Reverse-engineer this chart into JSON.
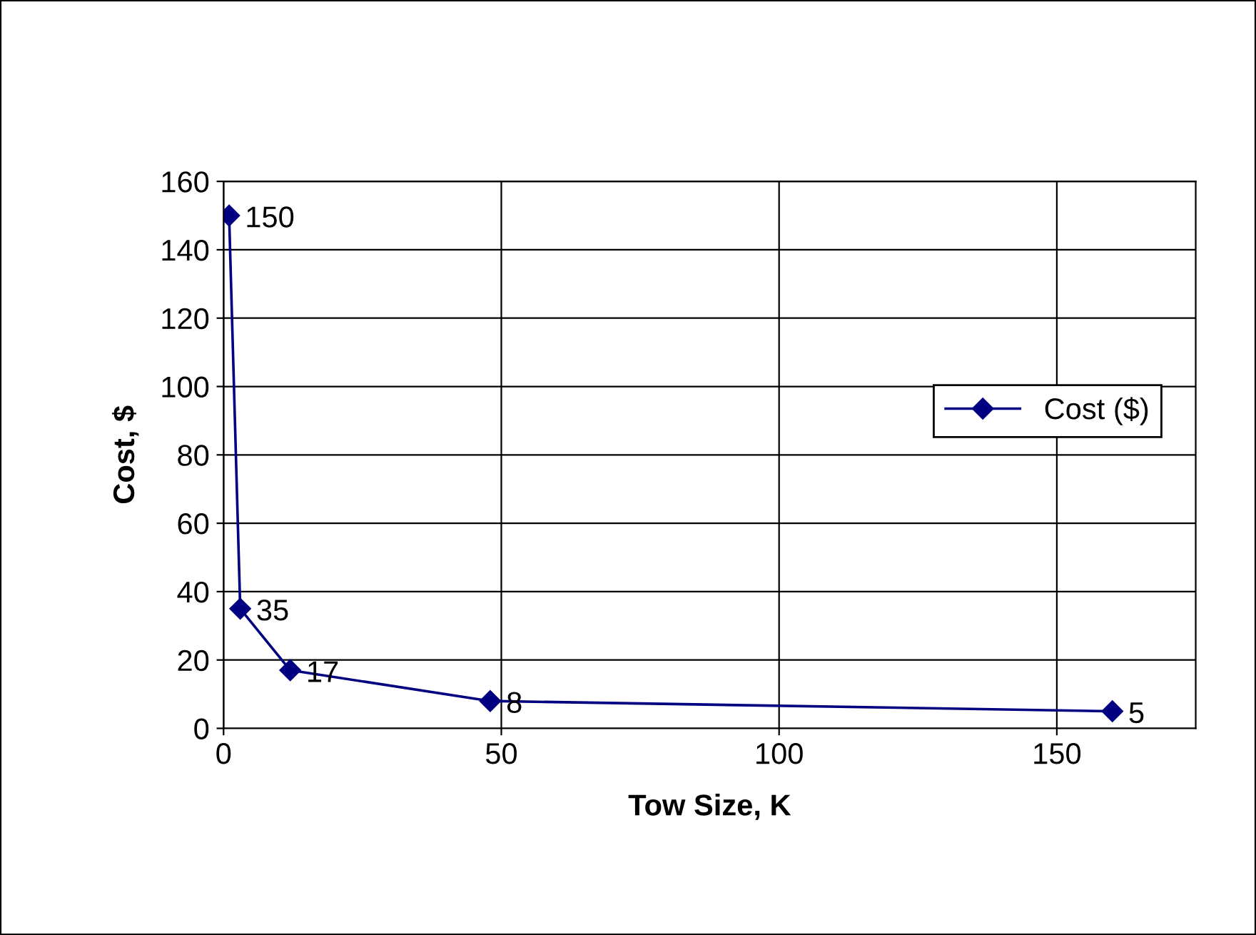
{
  "chart_data": {
    "type": "line",
    "xlabel": "Tow Size, K",
    "ylabel": "Cost, $",
    "x": [
      1,
      3,
      12,
      48,
      160
    ],
    "series": [
      {
        "name": "Cost ($)",
        "color": "#000080",
        "values": [
          150,
          35,
          17,
          8,
          5
        ]
      }
    ],
    "xlim": [
      0,
      175
    ],
    "xticks": [
      0,
      50,
      100,
      150
    ],
    "ylim": [
      0,
      160
    ],
    "yticks": [
      0,
      20,
      40,
      60,
      80,
      100,
      120,
      140,
      160
    ],
    "grid": true,
    "legend": "right",
    "marker": "diamond",
    "line_style": "solid",
    "data_labels": true
  }
}
